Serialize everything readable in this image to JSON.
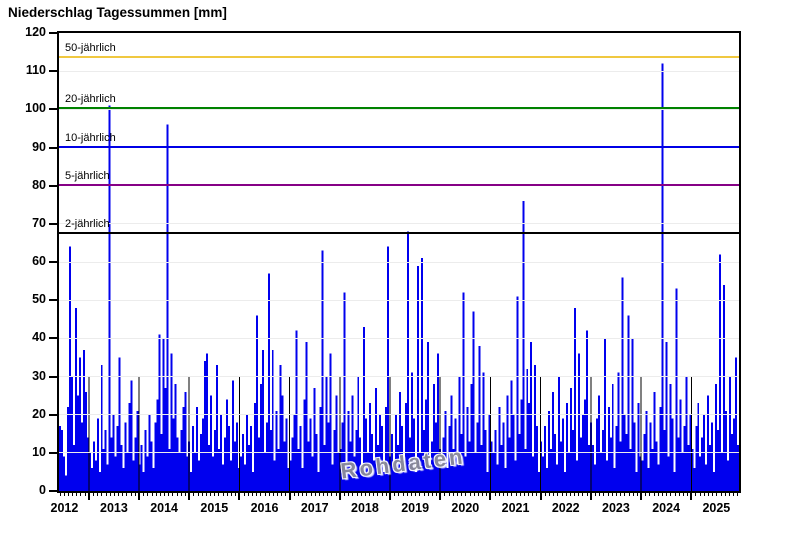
{
  "page": {
    "title": "Niederschlag Tagessummen [mm]",
    "watermark": "Rohdaten",
    "background": "#ffffff"
  },
  "chart_data": {
    "type": "bar",
    "title": "Niederschlag Tagessummen [mm]",
    "unit": "mm",
    "ylim": [
      0,
      120
    ],
    "y_tick_step": 10,
    "grid": "horizontal light gray lines every 10 mm",
    "legend_position": "none",
    "bar_color": "#0000EE",
    "watermark": "Rohdaten",
    "x_years": [
      2012,
      2013,
      2014,
      2015,
      2016,
      2017,
      2018,
      2019,
      2020,
      2021,
      2022,
      2023,
      2024,
      2025
    ],
    "x_domain_decimal_years": [
      2012.4,
      2026.0
    ],
    "reference_lines": [
      {
        "label": "50-jährlich",
        "value": 113.6,
        "color": "#F0C840"
      },
      {
        "label": "20-jährlich",
        "value": 100.3,
        "color": "#008200"
      },
      {
        "label": "10-jährlich",
        "value": 90.2,
        "color": "#0000E6"
      },
      {
        "label": "5-jährlich",
        "value": 80.2,
        "color": "#860086"
      },
      {
        "label": "2-jährlich",
        "value": 67.6,
        "color": "#000000"
      }
    ],
    "notable_peaks": [
      {
        "x": 2012.5,
        "value": 64
      },
      {
        "x": 2013.3,
        "value": 101
      },
      {
        "x": 2014.4,
        "value": 96
      },
      {
        "x": 2016.5,
        "value": 57
      },
      {
        "x": 2017.6,
        "value": 63
      },
      {
        "x": 2018.95,
        "value": 64
      },
      {
        "x": 2019.3,
        "value": 68
      },
      {
        "x": 2021.25,
        "value": 76
      },
      {
        "x": 2024.4,
        "value": 112
      },
      {
        "x": 2025.6,
        "value": 62
      }
    ],
    "sampling": "daily precipitation sums shown as dense 1-2 px bars; columns array = envelope value per ~2-week slot, mm",
    "columns": [
      17,
      16,
      9,
      4,
      22,
      64,
      30,
      12,
      48,
      25,
      35,
      18,
      37,
      26,
      14,
      10,
      6,
      13,
      8,
      19,
      5,
      33,
      11,
      16,
      7,
      101,
      14,
      20,
      9,
      17,
      35,
      12,
      6,
      18,
      10,
      23,
      29,
      8,
      14,
      21,
      7,
      12,
      5,
      16,
      9,
      20,
      13,
      6,
      18,
      24,
      41,
      15,
      40,
      27,
      96,
      11,
      36,
      19,
      28,
      14,
      10,
      16,
      22,
      26,
      9,
      13,
      5,
      17,
      10,
      22,
      8,
      15,
      19,
      34,
      36,
      12,
      25,
      9,
      16,
      33,
      11,
      20,
      7,
      14,
      24,
      17,
      8,
      29,
      13,
      18,
      6,
      9,
      15,
      7,
      20,
      12,
      17,
      5,
      23,
      46,
      14,
      28,
      37,
      10,
      18,
      57,
      16,
      37,
      8,
      21,
      11,
      33,
      25,
      13,
      19,
      6,
      8,
      14,
      20,
      42,
      11,
      17,
      6,
      24,
      39,
      13,
      19,
      9,
      27,
      15,
      5,
      22,
      63,
      12,
      30,
      18,
      36,
      7,
      16,
      25,
      10,
      11,
      18,
      52,
      7,
      21,
      13,
      25,
      9,
      16,
      30,
      14,
      6,
      43,
      19,
      10,
      23,
      15,
      8,
      27,
      12,
      20,
      17,
      5,
      22,
      64,
      9,
      15,
      6,
      20,
      12,
      26,
      17,
      8,
      23,
      68,
      14,
      31,
      19,
      5,
      59,
      10,
      61,
      16,
      24,
      39,
      7,
      13,
      28,
      18,
      36,
      11,
      8,
      14,
      21,
      6,
      17,
      25,
      11,
      19,
      7,
      30,
      15,
      52,
      9,
      22,
      13,
      28,
      47,
      10,
      18,
      38,
      12,
      31,
      16,
      5,
      20,
      13,
      10,
      16,
      7,
      22,
      12,
      18,
      6,
      25,
      14,
      29,
      20,
      8,
      51,
      15,
      24,
      76,
      11,
      32,
      23,
      39,
      9,
      33,
      17,
      5,
      13,
      9,
      17,
      6,
      21,
      11,
      26,
      15,
      7,
      30,
      13,
      19,
      5,
      23,
      10,
      27,
      16,
      48,
      8,
      36,
      14,
      20,
      24,
      42,
      12,
      18,
      12,
      7,
      19,
      25,
      10,
      16,
      40,
      8,
      22,
      14,
      28,
      6,
      17,
      31,
      13,
      56,
      20,
      15,
      46,
      11,
      40,
      18,
      5,
      23,
      9,
      8,
      15,
      21,
      6,
      18,
      11,
      26,
      13,
      7,
      22,
      112,
      16,
      39,
      9,
      28,
      19,
      5,
      53,
      14,
      24,
      10,
      17,
      30,
      12,
      20,
      11,
      6,
      17,
      23,
      9,
      14,
      20,
      7,
      25,
      12,
      18,
      5,
      28,
      16,
      62,
      10,
      54,
      21,
      8,
      30,
      15,
      19,
      35,
      12
    ],
    "layout_hints": {
      "first_jan_frac": -0.03,
      "year_width_frac": 0.07383,
      "year_marker_inner_line_top_value": 30
    }
  }
}
